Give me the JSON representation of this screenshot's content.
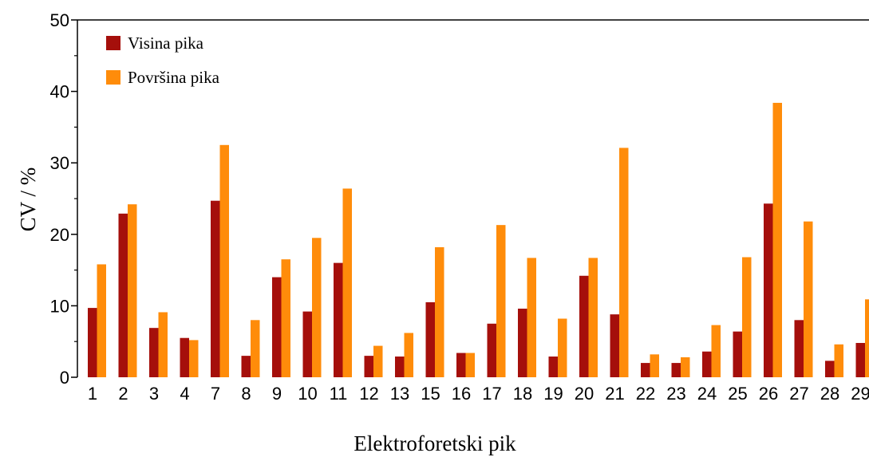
{
  "chart_data": {
    "type": "bar",
    "xlabel": "Elektroforetski pik",
    "ylabel": "CV / %",
    "categories": [
      "1",
      "2",
      "3",
      "4",
      "7",
      "8",
      "9",
      "10",
      "11",
      "12",
      "13",
      "15",
      "16",
      "17",
      "18",
      "19",
      "20",
      "21",
      "22",
      "23",
      "24",
      "25",
      "26",
      "27",
      "28",
      "29"
    ],
    "series": [
      {
        "name": "Visina pika",
        "color": "#a50f0b",
        "values": [
          9.7,
          22.9,
          6.9,
          5.5,
          24.7,
          3.0,
          14.0,
          9.2,
          16.0,
          3.0,
          2.9,
          10.5,
          3.4,
          7.5,
          9.6,
          2.9,
          14.2,
          8.8,
          2.0,
          2.0,
          3.6,
          6.4,
          24.3,
          8.0,
          2.3,
          4.8
        ]
      },
      {
        "name": "Površina pika",
        "color": "#ff8c0a",
        "values": [
          15.8,
          24.2,
          9.1,
          5.2,
          32.5,
          8.0,
          16.5,
          19.5,
          26.4,
          4.4,
          6.2,
          18.2,
          3.4,
          21.3,
          16.7,
          8.2,
          16.7,
          32.1,
          3.2,
          2.8,
          7.3,
          16.8,
          38.4,
          21.8,
          4.6,
          10.9
        ]
      }
    ],
    "ylim": [
      0,
      50
    ],
    "yticks": [
      0,
      10,
      20,
      30,
      40,
      50
    ],
    "yminorticks": [
      5,
      15,
      25,
      35,
      45
    ],
    "legend": "upper-left"
  }
}
